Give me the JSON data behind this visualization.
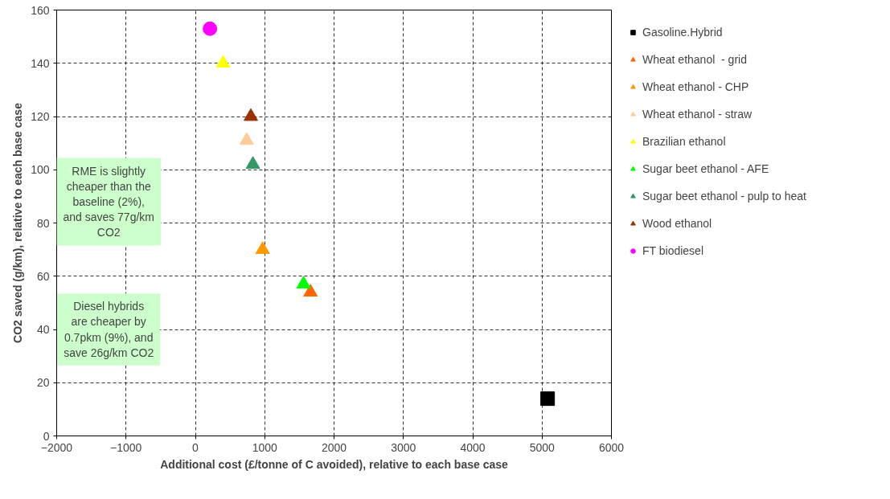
{
  "chart_data": {
    "type": "scatter",
    "xlabel": "Additional cost (£/tonne of C avoided), relative to each base case",
    "ylabel": "CO2 saved (g/km), relative to each base case",
    "xlim": [
      -2000,
      6000
    ],
    "xticks": [
      -2000,
      -1000,
      0,
      1000,
      2000,
      3000,
      4000,
      5000,
      6000
    ],
    "ylim": [
      0,
      160
    ],
    "yticks": [
      0,
      20,
      40,
      60,
      80,
      100,
      120,
      140,
      160
    ],
    "grid": true,
    "legend": "right",
    "annotations": [
      "RME is slightly cheaper than the baseline (2%), and saves 77g/km CO2",
      "Diesel hybrids are cheaper by 0.7pkm (9%), and save 26g/km CO2"
    ],
    "series": [
      {
        "name": "Gasoline.Hybrid",
        "color": "#000000",
        "marker": "square",
        "x": [
          5080
        ],
        "values": [
          14
        ]
      },
      {
        "name": "Wheat ethanol  - grid",
        "color": "#ff6600",
        "marker": "triangle",
        "x": [
          1660
        ],
        "values": [
          54
        ]
      },
      {
        "name": "Wheat ethanol - CHP",
        "color": "#ff9900",
        "marker": "triangle",
        "x": [
          970
        ],
        "values": [
          70
        ]
      },
      {
        "name": "Wheat ethanol - straw",
        "color": "#ffcc99",
        "marker": "triangle",
        "x": [
          740
        ],
        "values": [
          111
        ]
      },
      {
        "name": "Brazilian ethanol",
        "color": "#ffff00",
        "marker": "triangle",
        "x": [
          400
        ],
        "values": [
          140
        ]
      },
      {
        "name": "Sugar beet ethanol - AFE",
        "color": "#00ff00",
        "marker": "triangle",
        "x": [
          1560
        ],
        "values": [
          57
        ]
      },
      {
        "name": "Sugar beet ethanol - pulp to heat",
        "color": "#339966",
        "marker": "triangle",
        "x": [
          830
        ],
        "values": [
          102
        ]
      },
      {
        "name": "Wood ethanol",
        "color": "#993300",
        "marker": "triangle",
        "x": [
          800
        ],
        "values": [
          120
        ]
      },
      {
        "name": "FT biodiesel",
        "color": "#ff00ff",
        "marker": "circle",
        "x": [
          210
        ],
        "values": [
          153
        ]
      }
    ]
  }
}
